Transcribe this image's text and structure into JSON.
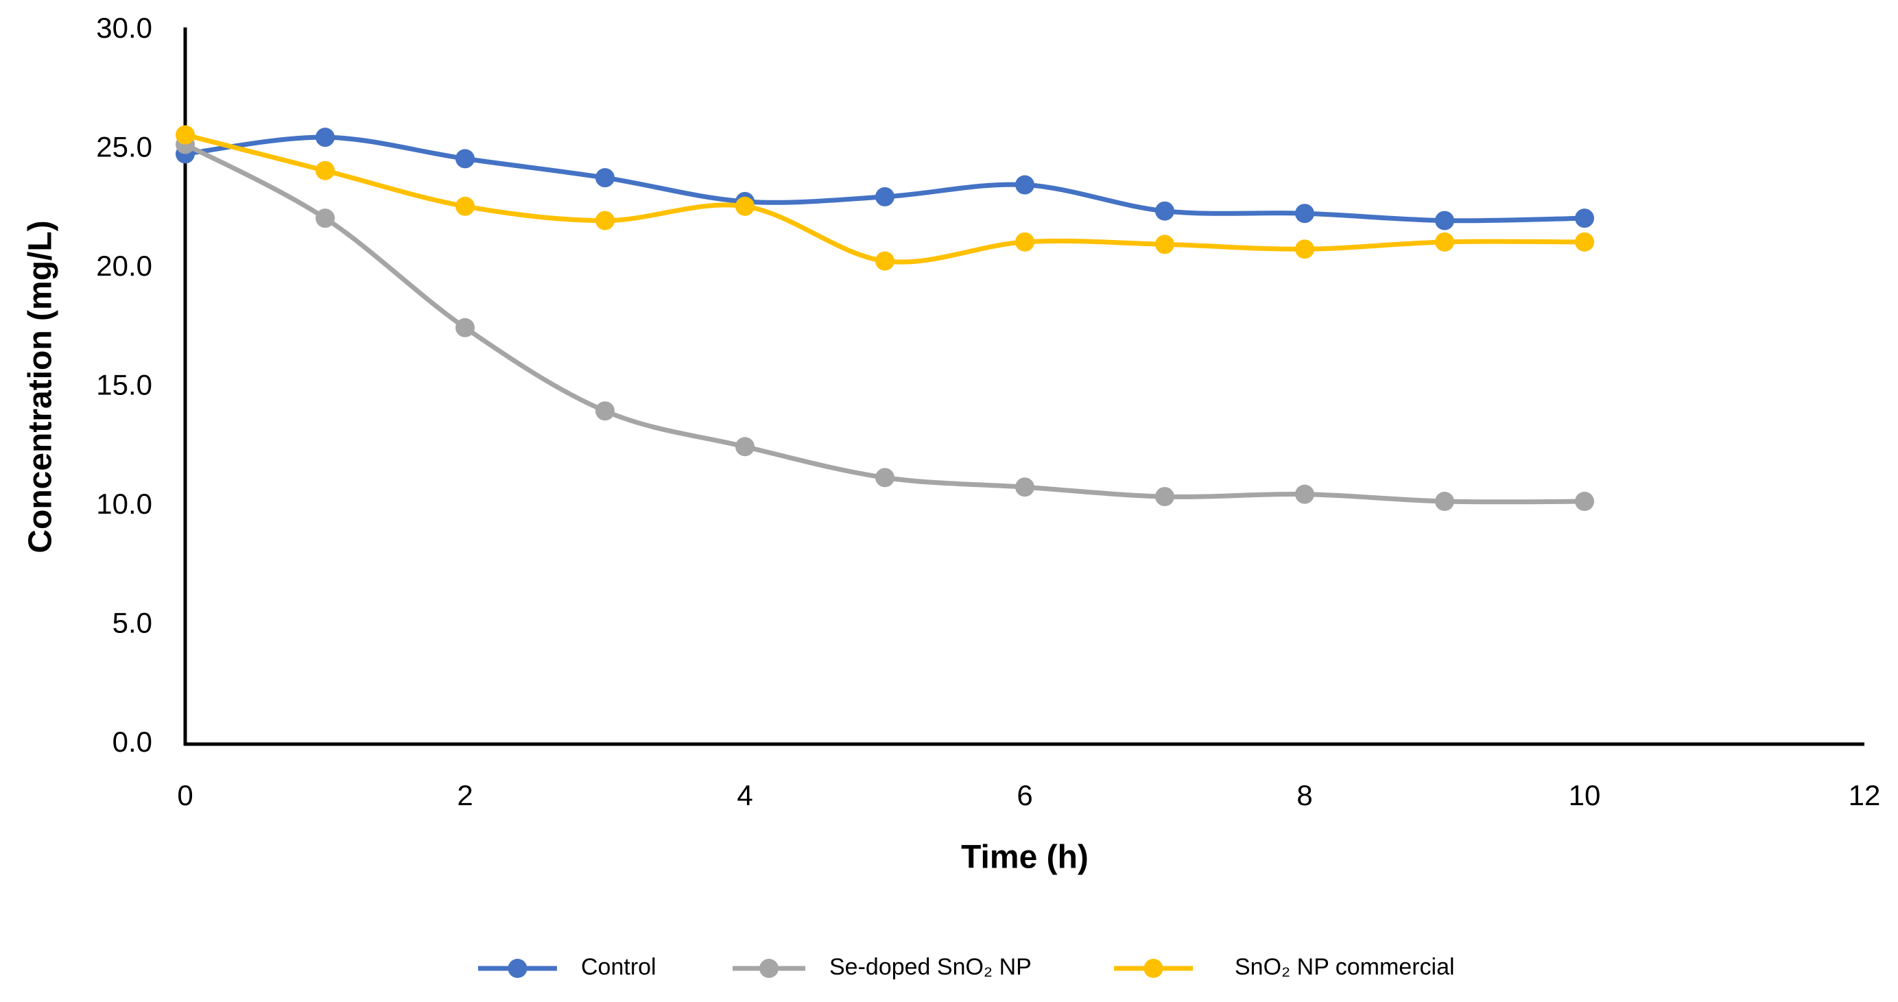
{
  "chart_data": {
    "type": "line",
    "x_label": "Time (h)",
    "y_label": "Concentration (mg/L)",
    "x": [
      0,
      1,
      2,
      3,
      4,
      5,
      6,
      7,
      8,
      9,
      10
    ],
    "series": [
      {
        "name": "Control",
        "color": "#4472c4",
        "values": [
          24.8,
          25.5,
          24.6,
          23.8,
          22.8,
          23.0,
          23.5,
          22.4,
          22.3,
          22.0,
          22.1
        ]
      },
      {
        "name": "Se-doped SnO₂ NP",
        "color": "#a5a5a5",
        "values": [
          25.2,
          22.1,
          17.5,
          14.0,
          12.5,
          11.2,
          10.8,
          10.4,
          10.5,
          10.2,
          10.2
        ]
      },
      {
        "name": "SnO₂ NP commercial",
        "color": "#ffc000",
        "values": [
          25.6,
          24.1,
          22.6,
          22.0,
          22.6,
          20.3,
          21.1,
          21.0,
          20.8,
          21.1,
          21.1
        ]
      }
    ],
    "xlim": [
      0,
      12
    ],
    "xticks": [
      0,
      2,
      4,
      6,
      8,
      10,
      12
    ],
    "ylim": [
      0,
      30
    ],
    "yticks": [
      {
        "value": 0,
        "label": "0.0"
      },
      {
        "value": 5,
        "label": "5.0"
      },
      {
        "value": 10,
        "label": "10.0"
      },
      {
        "value": 15,
        "label": "15.0"
      },
      {
        "value": 20,
        "label": "20.0"
      },
      {
        "value": 25,
        "label": "25.0"
      },
      {
        "value": 30,
        "label": "30.0"
      }
    ],
    "grid": false,
    "smooth": true,
    "legend": "bottom"
  }
}
